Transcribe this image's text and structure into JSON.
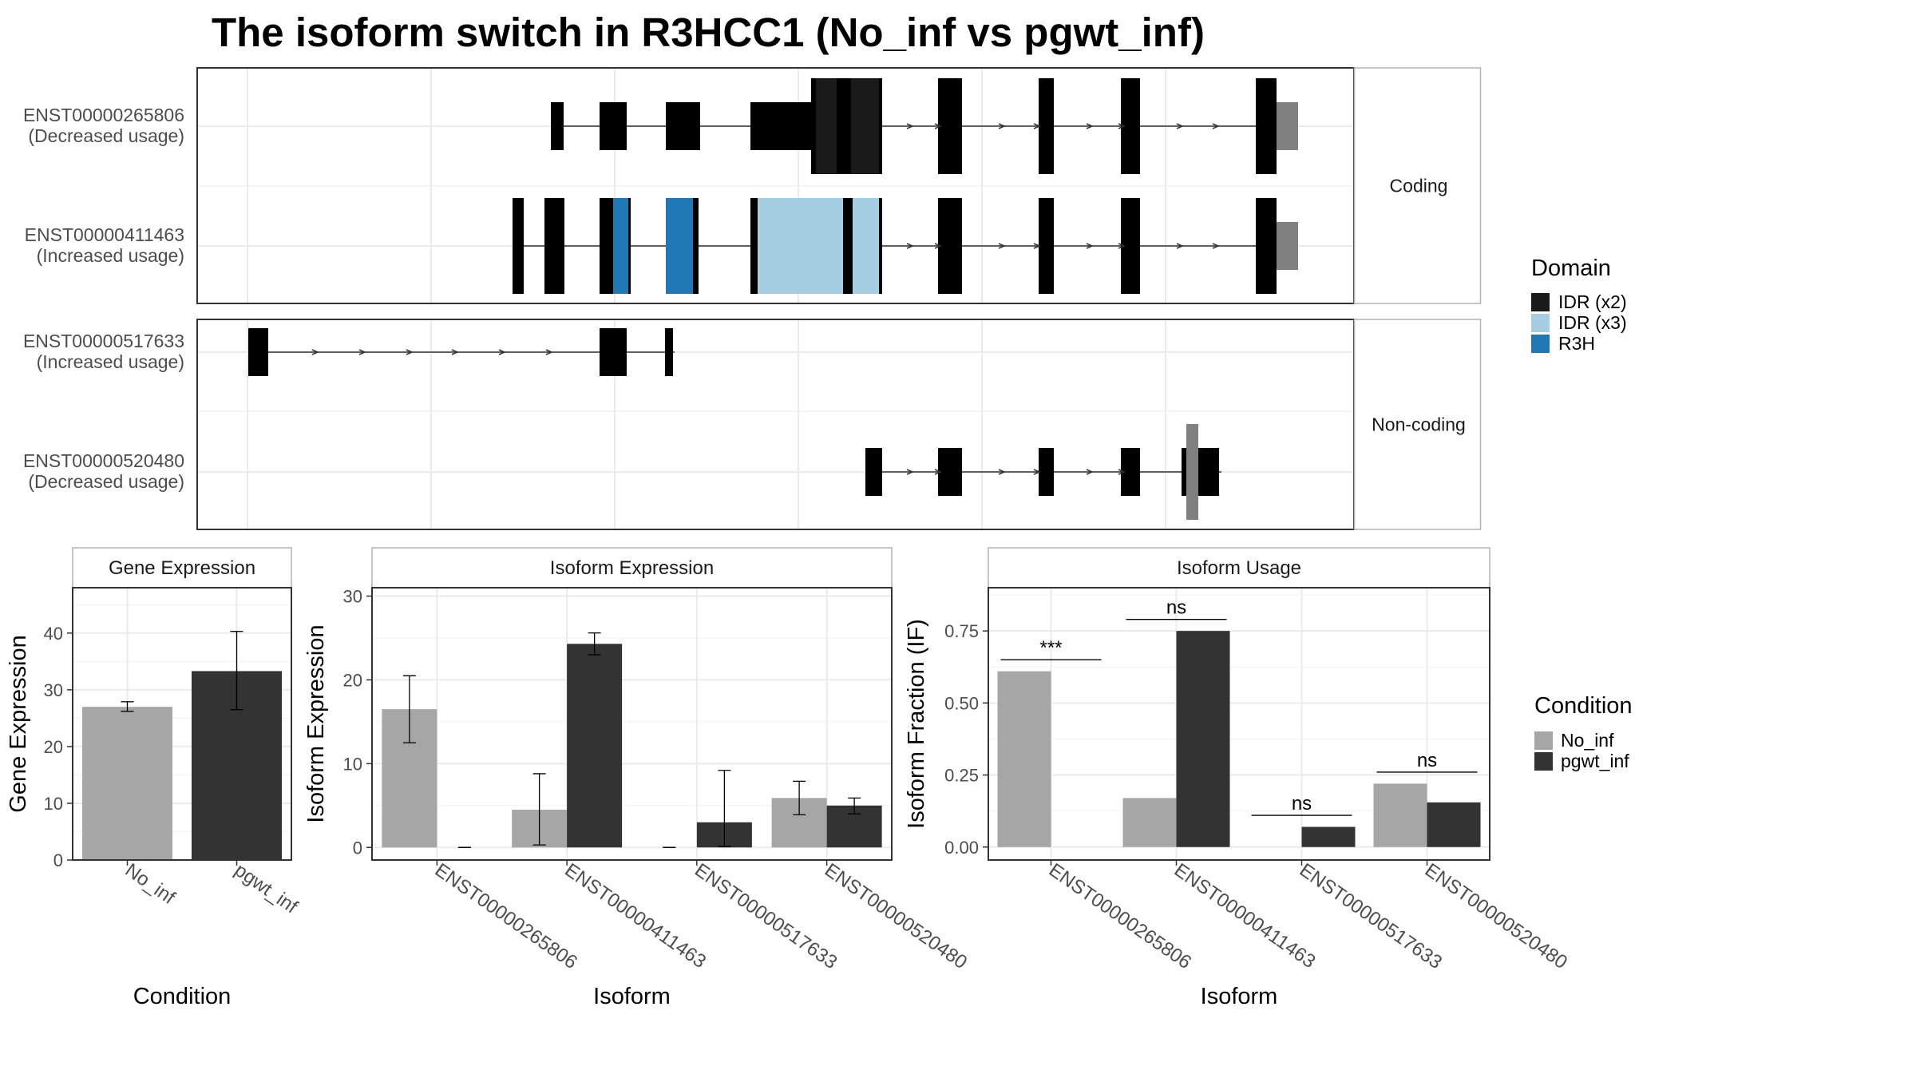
{
  "title": "The isoform switch in R3HCC1 (No_inf vs pgwt_inf)",
  "colors": {
    "no_inf": "#a6a6a6",
    "pgwt_inf": "#333333",
    "exon": "#808080",
    "idr_x2": "#1a1a1a",
    "idr_x3": "#a6cee3",
    "r3h": "#1f78b4"
  },
  "structure": {
    "facets": [
      "Coding",
      "Non-coding"
    ],
    "transcripts": [
      {
        "id": "ENST00000265806",
        "status": "(Decreased usage)",
        "facet": "Coding"
      },
      {
        "id": "ENST00000411463",
        "status": "(Increased usage)",
        "facet": "Coding"
      },
      {
        "id": "ENST00000517633",
        "status": "(Increased usage)",
        "facet": "Non-coding"
      },
      {
        "id": "ENST00000520480",
        "status": "(Decreased usage)",
        "facet": "Non-coding"
      }
    ],
    "domain_legend": {
      "title": "Domain",
      "items": [
        {
          "label": "IDR (x2)",
          "color": "#1a1a1a"
        },
        {
          "label": "IDR (x3)",
          "color": "#a6cee3"
        },
        {
          "label": "R3H",
          "color": "#1f78b4"
        }
      ]
    }
  },
  "condition_legend": {
    "title": "Condition",
    "items": [
      {
        "label": "No_inf",
        "color": "#a6a6a6"
      },
      {
        "label": "pgwt_inf",
        "color": "#333333"
      }
    ]
  },
  "chart_data": [
    {
      "type": "bar",
      "title": "Gene Expression",
      "xlabel": "Condition",
      "ylabel": "Gene Expression",
      "categories": [
        "No_inf",
        "pgwt_inf"
      ],
      "values": [
        27.0,
        33.3
      ],
      "errors": [
        [
          26.2,
          27.9
        ],
        [
          26.5,
          40.3
        ]
      ],
      "ylim": [
        0,
        48
      ],
      "yticks": [
        0,
        10,
        20,
        30,
        40
      ]
    },
    {
      "type": "bar",
      "title": "Isoform Expression",
      "xlabel": "Isoform",
      "ylabel": "Isoform Expression",
      "categories": [
        "ENST00000265806",
        "ENST00000411463",
        "ENST00000517633",
        "ENST00000520480"
      ],
      "series": [
        {
          "name": "No_inf",
          "values": [
            16.5,
            4.5,
            0,
            5.9
          ],
          "errors": [
            [
              12.5,
              20.5
            ],
            [
              0.3,
              8.8
            ],
            [
              0,
              0
            ],
            [
              3.9,
              7.9
            ]
          ]
        },
        {
          "name": "pgwt_inf",
          "values": [
            0,
            24.3,
            3.0,
            5.0
          ],
          "errors": [
            [
              0,
              0
            ],
            [
              23.0,
              25.6
            ],
            [
              0.1,
              9.2
            ],
            [
              4.0,
              5.9
            ]
          ]
        }
      ],
      "ylim": [
        -1.5,
        31
      ],
      "yticks": [
        0,
        10,
        20,
        30
      ]
    },
    {
      "type": "bar",
      "title": "Isoform Usage",
      "xlabel": "Isoform",
      "ylabel": "Isoform Fraction (IF)",
      "categories": [
        "ENST00000265806",
        "ENST00000411463",
        "ENST00000517633",
        "ENST00000520480"
      ],
      "series": [
        {
          "name": "No_inf",
          "values": [
            0.61,
            0.17,
            0.0,
            0.22
          ]
        },
        {
          "name": "pgwt_inf",
          "values": [
            0.0,
            0.75,
            0.07,
            0.155
          ]
        }
      ],
      "significance": [
        "***",
        "ns",
        "ns",
        "ns"
      ],
      "sig_y": [
        0.65,
        0.79,
        0.11,
        0.26
      ],
      "ylim": [
        -0.045,
        0.9
      ],
      "yticks": [
        0.0,
        0.25,
        0.5,
        0.75
      ],
      "ytick_labels": [
        "0.00",
        "0.25",
        "0.50",
        "0.75"
      ]
    }
  ]
}
